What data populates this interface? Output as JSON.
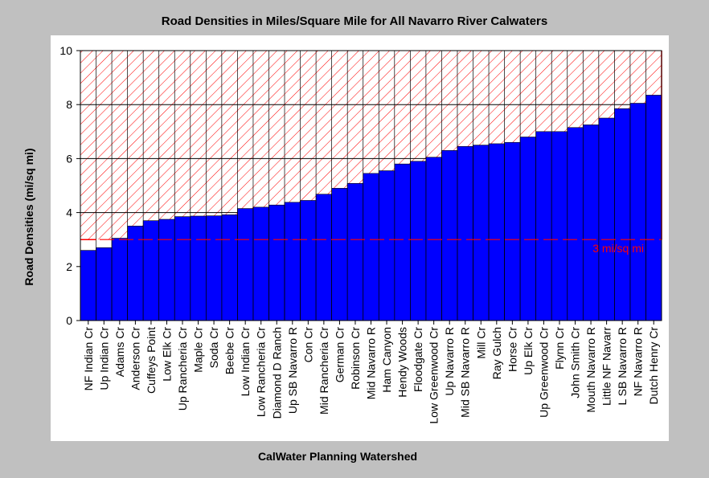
{
  "chart_data": {
    "type": "bar",
    "title": "Road Densities in Miles/Square Mile for All Navarro River Calwaters",
    "xlabel": "CalWater Planning Watershed",
    "ylabel": "Road Densities (mi/sq mi)",
    "ylim": [
      0,
      10
    ],
    "yticks": [
      "0",
      "2",
      "4",
      "6",
      "8",
      "10"
    ],
    "grid": true,
    "categories": [
      "NF Indian Cr",
      "Up Indian Cr",
      "Adams Cr",
      "Anderson Cr",
      "Cuffeys Point",
      "Low Elk Cr",
      "Up Rancheria Cr",
      "Maple Cr",
      "Soda Cr",
      "Beebe Cr",
      "Low Indian Cr",
      "Low Rancheria Cr",
      "Diamond D Ranch",
      "Up SB Navarro R",
      "Con Cr",
      "Mid Rancheria Cr",
      "German Cr",
      "Robinson Cr",
      "Mid Navarro R",
      "Ham Canyon",
      "Hendy Woods",
      "Floodgate Cr",
      "Low Greenwood Cr",
      "Up Navarro R",
      "Mid SB Navarro R",
      "Mill Cr",
      "Ray Gulch",
      "Horse Cr",
      "Up Elk Cr",
      "Up Greenwood Cr",
      "Flynn Cr",
      "John Smith Cr",
      "Mouth Navarro R",
      "Little NF Navarr",
      "L SB Navarro R",
      "NF Navarro R",
      "Dutch Henry Cr"
    ],
    "values": [
      2.6,
      2.7,
      3.05,
      3.5,
      3.7,
      3.75,
      3.85,
      3.87,
      3.88,
      3.92,
      4.15,
      4.2,
      4.28,
      4.38,
      4.45,
      4.68,
      4.9,
      5.08,
      5.45,
      5.55,
      5.8,
      5.9,
      6.05,
      6.3,
      6.45,
      6.5,
      6.55,
      6.6,
      6.8,
      7.0,
      7.0,
      7.15,
      7.25,
      7.5,
      7.85,
      8.05,
      8.35
    ],
    "threshold": {
      "value": 3,
      "label": "3 mi/sq mi",
      "color": "#ff0000"
    },
    "colors": {
      "bar": "#0000ff",
      "hatch": "#ff0000",
      "plot_bg": "#ffffff",
      "frame_bg": "#ffffff",
      "page_bg": "#c0c0c0"
    }
  }
}
